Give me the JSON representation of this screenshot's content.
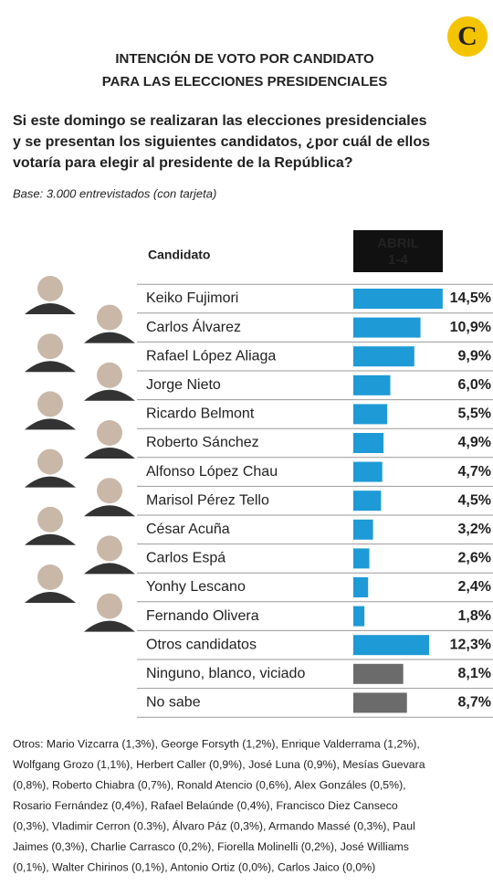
{
  "chart_data": {
    "type": "bar",
    "orientation": "horizontal",
    "logo": "C",
    "title_lines": [
      "INTENCIÓN DE VOTO POR CANDIDATO",
      "PARA LAS ELECCIONES PRESIDENCIALES"
    ],
    "question_lines": [
      "Si este domingo se realizaran las elecciones presidenciales",
      "y se presentan los siguientes candidatos, ¿por cuál de ellos",
      "votaría para elegir al presidente de la República?"
    ],
    "base": "Base: 3.000 entrevistados (con tarjeta)",
    "category_header": "Candidato",
    "series_header_lines": [
      "ABRIL",
      "1-4"
    ],
    "categories": [
      "Keiko Fujimori",
      "Carlos Álvarez",
      "Rafael López Aliaga",
      "Jorge Nieto",
      "Ricardo Belmont",
      "Roberto Sánchez",
      "Alfonso López Chau",
      "Marisol Pérez Tello",
      "César Acuña",
      "Carlos Espá",
      "Yonhy Lescano",
      "Fernando Olivera",
      "Otros candidatos",
      "Ninguno, blanco, viciado",
      "No sabe"
    ],
    "values": [
      14.5,
      10.9,
      9.9,
      6.0,
      5.5,
      4.9,
      4.7,
      4.5,
      3.2,
      2.6,
      2.4,
      1.8,
      12.3,
      8.1,
      8.7
    ],
    "value_labels": [
      "14,5%",
      "10,9%",
      "9,9%",
      "6,0%",
      "5,5%",
      "4,9%",
      "4,7%",
      "4,5%",
      "3,2%",
      "2,6%",
      "2,4%",
      "1,8%",
      "12,3%",
      "8,1%",
      "8,7%"
    ],
    "colors": [
      "#1e9ad6",
      "#1e9ad6",
      "#1e9ad6",
      "#1e9ad6",
      "#1e9ad6",
      "#1e9ad6",
      "#1e9ad6",
      "#1e9ad6",
      "#1e9ad6",
      "#1e9ad6",
      "#1e9ad6",
      "#1e9ad6",
      "#1e9ad6",
      "#6b6b6b",
      "#6b6b6b"
    ],
    "footnote_lines": [
      "Otros: Mario Vizcarra (1,3%), George Forsyth (1,2%), Enrique Valderrama (1,2%),",
      "Wolfgang Grozo (1,1%), Herbert Caller (0,9%), José Luna (0,9%), Mesías Guevara",
      "(0,8%), Roberto Chiabra (0,7%), Ronald Atencio (0,6%), Alex Gonzáles (0,5%),",
      "Rosario Fernández (0,4%), Rafael Belaúnde (0,4%), Francisco Diez Canseco",
      "(0,3%), Vladimir Cerron (0.3%), Álvaro Páz (0,3%), Armando Massé (0,3%), Paul",
      "Jaimes (0,3%), Charlie Carrasco (0,2%), Fiorella Molinelli (0,2%), José Williams",
      "(0,1%), Walter Chirinos (0,1%), Antonio Ortiz (0,0%), Carlos Jaico (0,0%)"
    ]
  }
}
